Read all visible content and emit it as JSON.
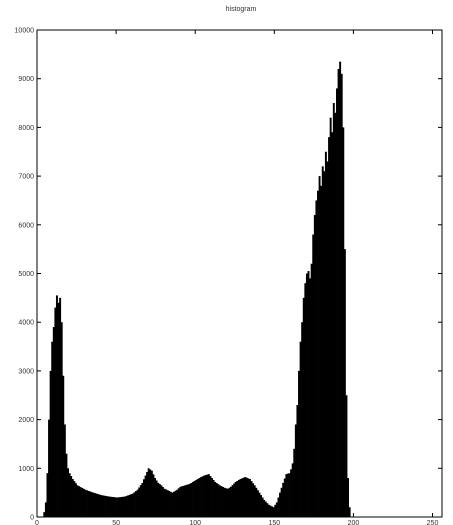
{
  "chart_data": {
    "type": "bar",
    "title": "histogram",
    "xlabel": "",
    "ylabel": "",
    "xlim": [
      0,
      256
    ],
    "ylim": [
      0,
      10000
    ],
    "xticks": [
      0,
      50,
      100,
      150,
      200,
      250
    ],
    "yticks": [
      0,
      1000,
      2000,
      3000,
      4000,
      5000,
      6000,
      7000,
      8000,
      9000,
      10000
    ],
    "grid": false,
    "legend": "none",
    "bar_color": "#000000",
    "bins": [
      [
        0,
        0
      ],
      [
        3,
        0
      ],
      [
        4,
        100
      ],
      [
        5,
        300
      ],
      [
        6,
        900
      ],
      [
        7,
        2000
      ],
      [
        8,
        3000
      ],
      [
        9,
        3600
      ],
      [
        10,
        3900
      ],
      [
        11,
        4300
      ],
      [
        12,
        4550
      ],
      [
        13,
        4400
      ],
      [
        14,
        4500
      ],
      [
        15,
        4000
      ],
      [
        16,
        2900
      ],
      [
        17,
        1900
      ],
      [
        18,
        1300
      ],
      [
        19,
        1000
      ],
      [
        20,
        900
      ],
      [
        22,
        780
      ],
      [
        25,
        650
      ],
      [
        30,
        560
      ],
      [
        35,
        500
      ],
      [
        40,
        450
      ],
      [
        45,
        420
      ],
      [
        50,
        400
      ],
      [
        55,
        420
      ],
      [
        60,
        480
      ],
      [
        63,
        560
      ],
      [
        66,
        700
      ],
      [
        68,
        850
      ],
      [
        70,
        1000
      ],
      [
        72,
        950
      ],
      [
        74,
        800
      ],
      [
        76,
        700
      ],
      [
        78,
        650
      ],
      [
        80,
        580
      ],
      [
        82,
        550
      ],
      [
        85,
        500
      ],
      [
        88,
        560
      ],
      [
        90,
        620
      ],
      [
        93,
        650
      ],
      [
        96,
        680
      ],
      [
        98,
        720
      ],
      [
        100,
        760
      ],
      [
        102,
        800
      ],
      [
        105,
        850
      ],
      [
        108,
        880
      ],
      [
        110,
        800
      ],
      [
        112,
        720
      ],
      [
        115,
        650
      ],
      [
        118,
        600
      ],
      [
        120,
        580
      ],
      [
        122,
        620
      ],
      [
        125,
        720
      ],
      [
        128,
        780
      ],
      [
        131,
        820
      ],
      [
        134,
        780
      ],
      [
        137,
        650
      ],
      [
        140,
        500
      ],
      [
        143,
        350
      ],
      [
        146,
        250
      ],
      [
        149,
        200
      ],
      [
        151,
        300
      ],
      [
        153,
        500
      ],
      [
        155,
        700
      ],
      [
        157,
        880
      ],
      [
        159,
        900
      ],
      [
        160,
        980
      ],
      [
        161,
        1100
      ],
      [
        162,
        1400
      ],
      [
        163,
        1900
      ],
      [
        164,
        2300
      ],
      [
        165,
        3000
      ],
      [
        166,
        3600
      ],
      [
        167,
        4000
      ],
      [
        168,
        4500
      ],
      [
        169,
        4800
      ],
      [
        170,
        5000
      ],
      [
        171,
        5050
      ],
      [
        172,
        4900
      ],
      [
        173,
        5200
      ],
      [
        174,
        5800
      ],
      [
        175,
        6200
      ],
      [
        176,
        6500
      ],
      [
        177,
        6700
      ],
      [
        178,
        7000
      ],
      [
        179,
        6800
      ],
      [
        180,
        7200
      ],
      [
        181,
        7100
      ],
      [
        182,
        7500
      ],
      [
        183,
        7300
      ],
      [
        184,
        7800
      ],
      [
        185,
        8200
      ],
      [
        186,
        7900
      ],
      [
        187,
        8500
      ],
      [
        188,
        8300
      ],
      [
        189,
        8800
      ],
      [
        190,
        9200
      ],
      [
        191,
        9350
      ],
      [
        192,
        9100
      ],
      [
        193,
        8000
      ],
      [
        194,
        5500
      ],
      [
        195,
        2500
      ],
      [
        196,
        800
      ],
      [
        197,
        200
      ],
      [
        198,
        0
      ],
      [
        256,
        0
      ]
    ]
  }
}
